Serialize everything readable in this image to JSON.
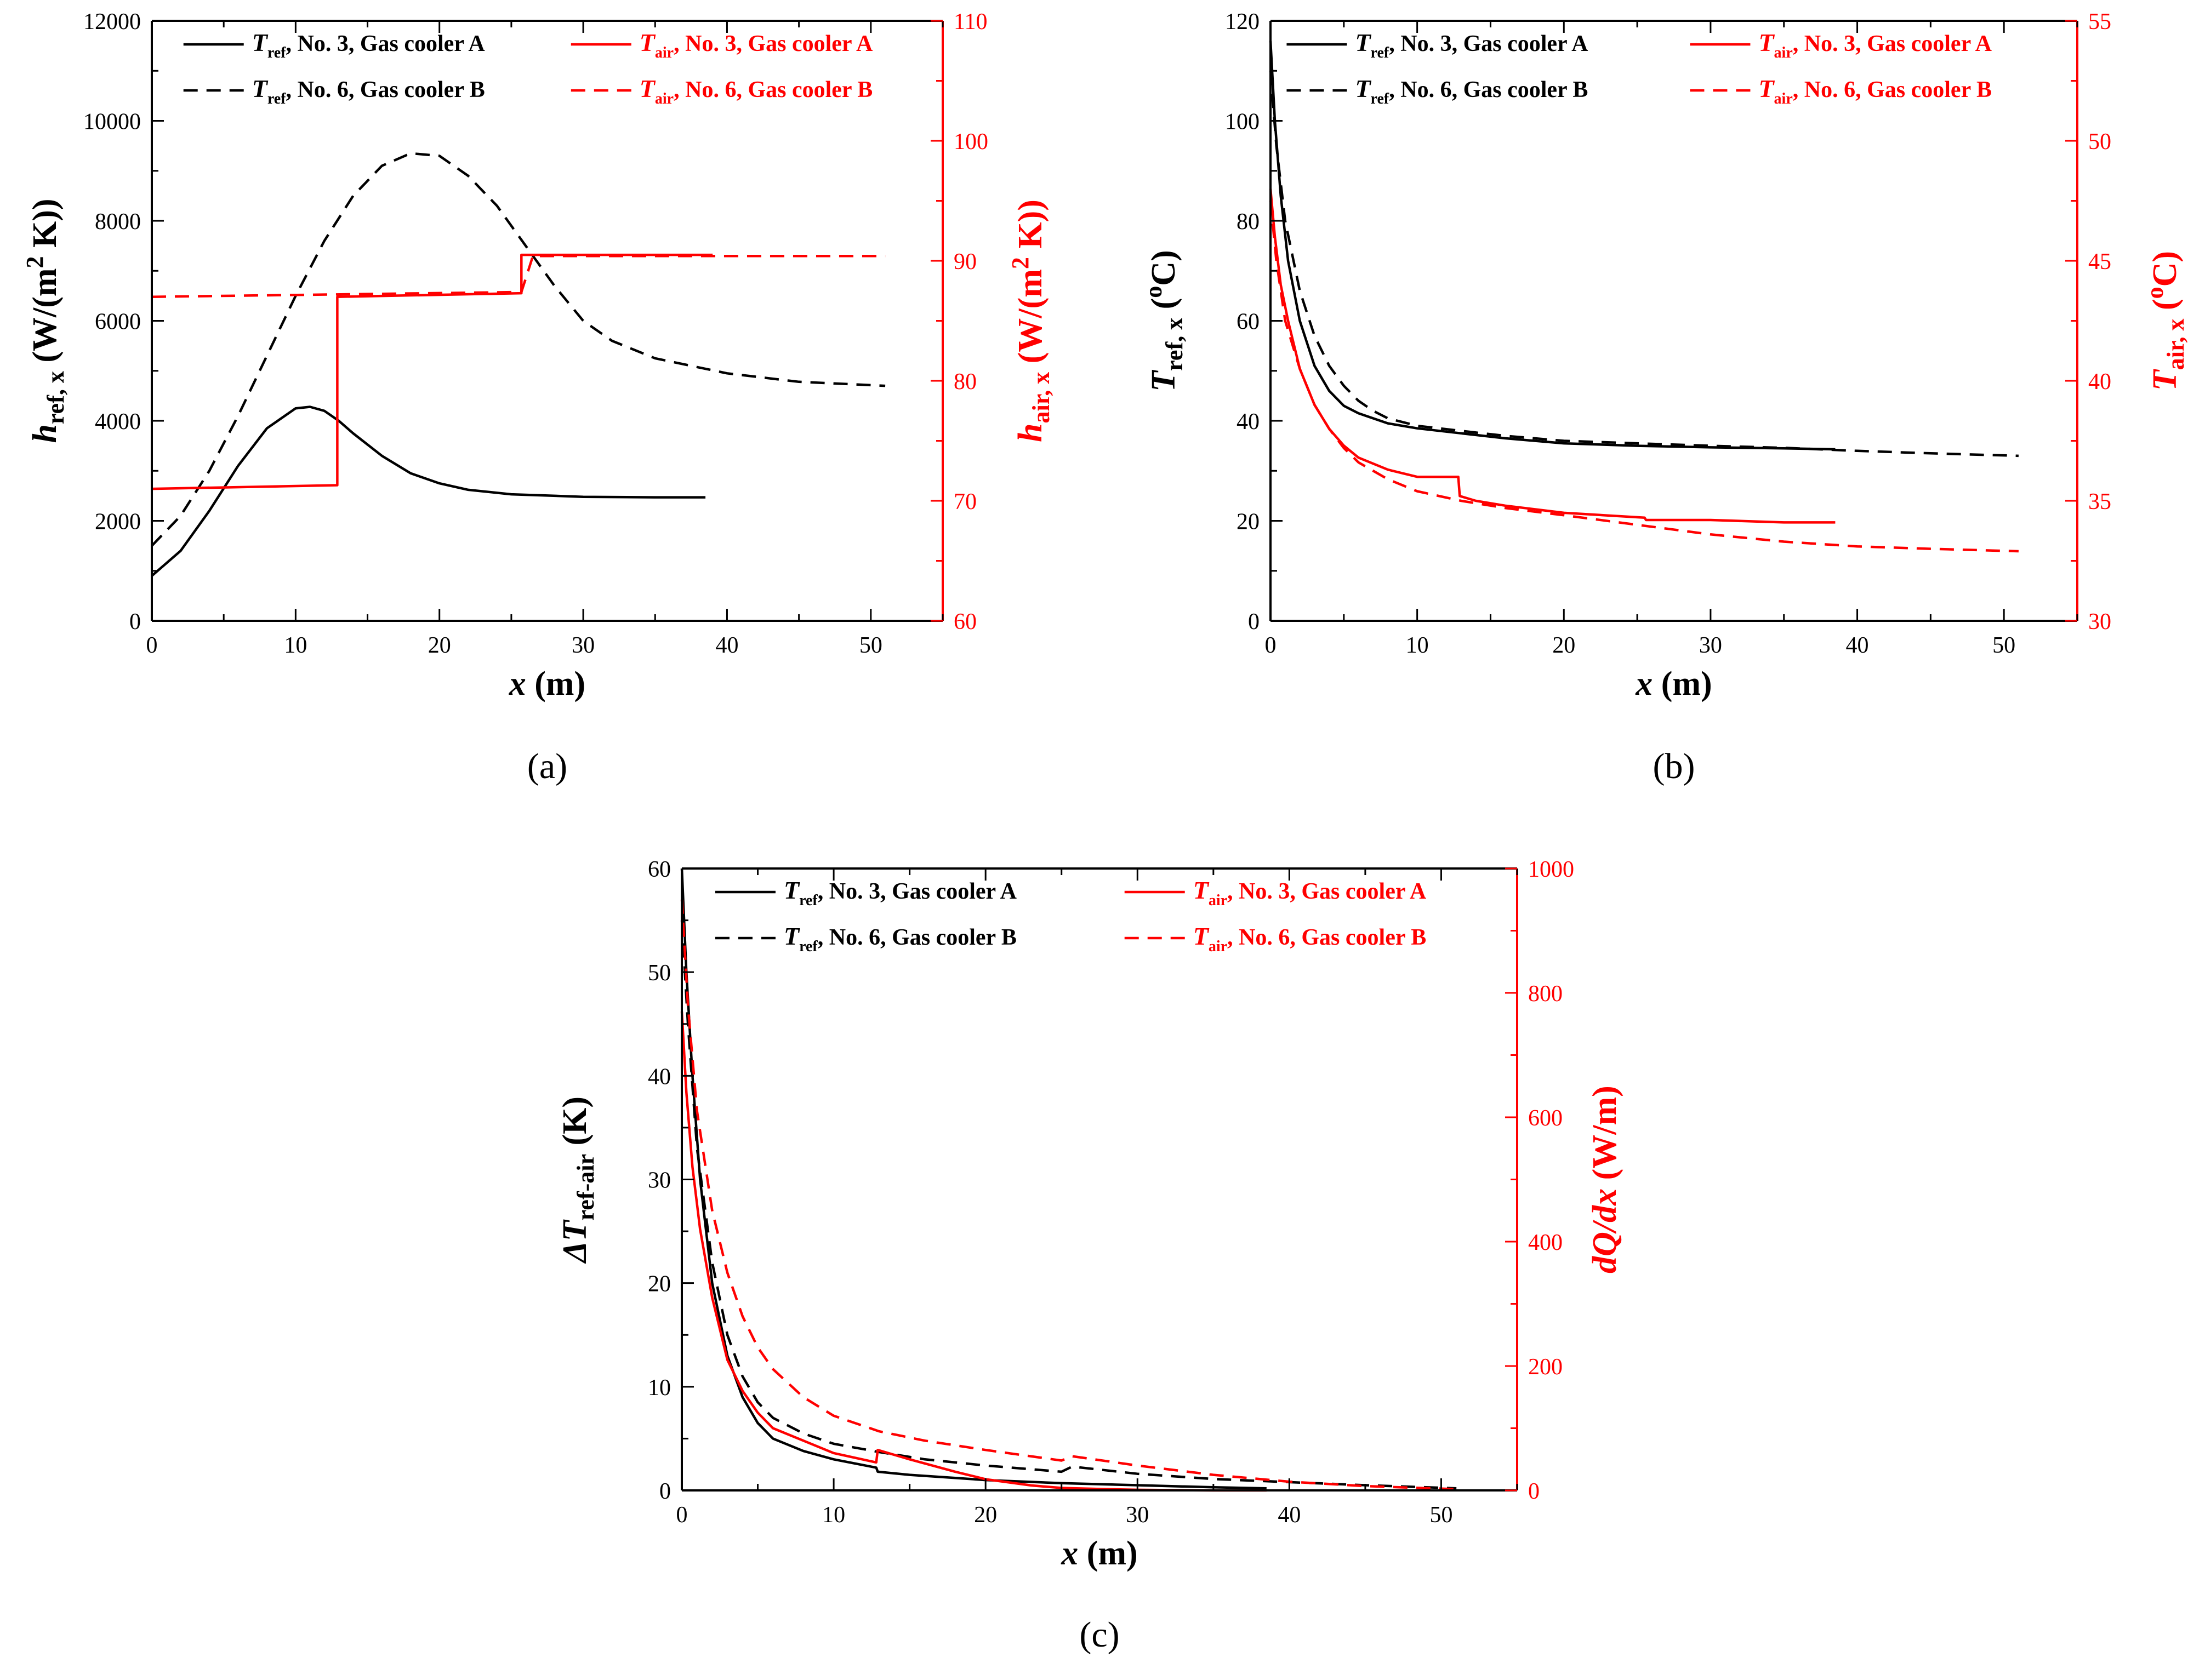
{
  "chart_data": [
    {
      "panel_label": "(a)",
      "type": "line",
      "xlabel": "x",
      "xlabel_unit": "(m)",
      "xlim": [
        0,
        55
      ],
      "xticks": [
        0,
        10,
        20,
        30,
        40,
        50
      ],
      "left_axis": {
        "label_main": "h",
        "label_sub": "ref, x",
        "label_unit": "(W/(m",
        "label_sup": "2",
        "label_tail": " K))",
        "color": "#000000",
        "ylim": [
          0,
          12000
        ],
        "ticks": [
          0,
          2000,
          4000,
          6000,
          8000,
          10000,
          12000
        ]
      },
      "right_axis": {
        "label_main": "h",
        "label_sub": "air, x",
        "label_unit": "(W/(m",
        "label_sup": "2",
        "label_tail": " K))",
        "color": "#ff0000",
        "ylim": [
          60,
          110
        ],
        "ticks": [
          60,
          70,
          80,
          90,
          100,
          110
        ]
      },
      "legend": {
        "placement": "top",
        "entries": [
          {
            "main": "T",
            "sub": "ref",
            "text": ", No. 3, Gas cooler A",
            "color": "#000000",
            "dash": "solid"
          },
          {
            "main": "T",
            "sub": "air",
            "text": ", No. 3, Gas cooler A",
            "color": "#ff0000",
            "dash": "solid"
          },
          {
            "main": "T",
            "sub": "ref",
            "text": ", No. 6, Gas cooler B",
            "color": "#000000",
            "dash": "dashed"
          },
          {
            "main": "T",
            "sub": "air",
            "text": ", No. 6, Gas cooler B",
            "color": "#ff0000",
            "dash": "dashed"
          }
        ]
      },
      "series": [
        {
          "name": "h_ref, No. 3, Gas cooler A",
          "axis": "left",
          "color": "#000000",
          "dash": "solid",
          "x": [
            0,
            2,
            4,
            6,
            8,
            10,
            11,
            12,
            13,
            14,
            16,
            18,
            20,
            22,
            25,
            30,
            35,
            38.5
          ],
          "y": [
            900,
            1400,
            2200,
            3100,
            3850,
            4250,
            4280,
            4200,
            4000,
            3750,
            3300,
            2950,
            2750,
            2620,
            2530,
            2480,
            2470,
            2470
          ]
        },
        {
          "name": "h_ref, No. 6, Gas cooler B",
          "axis": "left",
          "color": "#000000",
          "dash": "dashed",
          "x": [
            0,
            2,
            4,
            6,
            8,
            10,
            12,
            14,
            16,
            18,
            20,
            22,
            24,
            26,
            28,
            30,
            32,
            35,
            40,
            45,
            51
          ],
          "y": [
            1500,
            2100,
            3000,
            4100,
            5300,
            6500,
            7600,
            8500,
            9100,
            9350,
            9300,
            8900,
            8300,
            7500,
            6700,
            6000,
            5600,
            5250,
            4950,
            4780,
            4700
          ]
        },
        {
          "name": "h_air, No. 3, Gas cooler A",
          "axis": "right",
          "color": "#ff0000",
          "dash": "solid",
          "x": [
            0,
            12.9,
            12.9,
            25.7,
            25.7,
            39
          ],
          "y": [
            71,
            71.3,
            87,
            87.3,
            90.5,
            90.5
          ]
        },
        {
          "name": "h_air, No. 6, Gas cooler B",
          "axis": "right",
          "color": "#ff0000",
          "dash": "dashed",
          "x": [
            0,
            25.7,
            26.5,
            51
          ],
          "y": [
            87,
            87.4,
            90.4,
            90.4
          ]
        }
      ]
    },
    {
      "panel_label": "(b)",
      "type": "line",
      "xlabel": "x",
      "xlabel_unit": "(m)",
      "xlim": [
        0,
        55
      ],
      "xticks": [
        0,
        10,
        20,
        30,
        40,
        50
      ],
      "left_axis": {
        "label_main": "T",
        "label_sub": "ref, x",
        "label_unit": "(",
        "label_sup": "o",
        "label_tail": "C)",
        "color": "#000000",
        "ylim": [
          0,
          120
        ],
        "ticks": [
          0,
          20,
          40,
          60,
          80,
          100,
          120
        ]
      },
      "right_axis": {
        "label_main": "T",
        "label_sub": "air, x",
        "label_unit": "(",
        "label_sup": "o",
        "label_tail": "C)",
        "color": "#ff0000",
        "ylim": [
          30,
          55
        ],
        "ticks": [
          30,
          35,
          40,
          45,
          50,
          55
        ]
      },
      "legend": {
        "placement": "top",
        "entries": [
          {
            "main": "T",
            "sub": "ref",
            "text": ", No. 3, Gas cooler A",
            "color": "#000000",
            "dash": "solid"
          },
          {
            "main": "T",
            "sub": "air",
            "text": ", No. 3, Gas cooler A",
            "color": "#ff0000",
            "dash": "solid"
          },
          {
            "main": "T",
            "sub": "ref",
            "text": ", No. 6, Gas cooler B",
            "color": "#000000",
            "dash": "dashed"
          },
          {
            "main": "T",
            "sub": "air",
            "text": ", No. 6, Gas cooler B",
            "color": "#ff0000",
            "dash": "dashed"
          }
        ]
      },
      "series": [
        {
          "name": "T_ref, No. 3, Gas cooler A",
          "axis": "left",
          "color": "#000000",
          "dash": "solid",
          "x": [
            0,
            0.3,
            0.7,
            1.2,
            2,
            3,
            4,
            5,
            6,
            8,
            10,
            13,
            16,
            20,
            25,
            30,
            35,
            38.5
          ],
          "y": [
            116,
            100,
            85,
            72,
            60,
            51,
            46,
            43,
            41.5,
            39.5,
            38.5,
            37.5,
            36.5,
            35.5,
            35,
            34.7,
            34.5,
            34.3
          ]
        },
        {
          "name": "T_ref, No. 6, Gas cooler B",
          "axis": "left",
          "color": "#000000",
          "dash": "dashed",
          "x": [
            0,
            0.4,
            1,
            2,
            3,
            4,
            5,
            6,
            7,
            8,
            10,
            13,
            16,
            20,
            25,
            30,
            35,
            40,
            45,
            51
          ],
          "y": [
            110,
            95,
            80,
            66,
            57,
            51,
            47,
            44,
            42,
            40.5,
            39,
            38,
            37,
            36,
            35.5,
            35,
            34.6,
            34,
            33.5,
            33
          ]
        },
        {
          "name": "T_air, No. 3, Gas cooler A",
          "axis": "right",
          "color": "#ff0000",
          "dash": "solid",
          "x": [
            0,
            0.3,
            0.7,
            1.2,
            2,
            3,
            4,
            5,
            6,
            8,
            10,
            12.8,
            12.9,
            14,
            16,
            20,
            25.5,
            25.6,
            30,
            35,
            38.5
          ],
          "y": [
            48,
            46,
            44,
            42.5,
            40.5,
            39,
            38,
            37.3,
            36.8,
            36.3,
            36,
            36,
            35.2,
            35,
            34.8,
            34.5,
            34.3,
            34.2,
            34.2,
            34.1,
            34.1
          ]
        },
        {
          "name": "T_air, No. 6, Gas cooler B",
          "axis": "right",
          "color": "#ff0000",
          "dash": "dashed",
          "x": [
            0,
            0.4,
            1,
            2,
            3,
            4,
            5,
            6,
            8,
            10,
            13,
            16,
            20,
            25,
            30,
            35,
            40,
            45,
            51
          ],
          "y": [
            47.5,
            45,
            42.5,
            40.5,
            39,
            38,
            37.2,
            36.6,
            35.9,
            35.4,
            35,
            34.7,
            34.4,
            34,
            33.6,
            33.3,
            33.1,
            33,
            32.9
          ]
        }
      ]
    },
    {
      "panel_label": "(c)",
      "type": "line",
      "xlabel": "x",
      "xlabel_unit": "(m)",
      "xlim": [
        0,
        55
      ],
      "xticks": [
        0,
        10,
        20,
        30,
        40,
        50
      ],
      "left_axis": {
        "label_main": "ΔT",
        "label_sub": "ref-air",
        "label_unit": "(K)",
        "label_sup": "",
        "label_tail": "",
        "color": "#000000",
        "ylim": [
          0,
          60
        ],
        "ticks": [
          0,
          10,
          20,
          30,
          40,
          50,
          60
        ]
      },
      "right_axis": {
        "label_main": "dQ/dx",
        "label_sub": "",
        "label_unit": "(W/m)",
        "label_sup": "",
        "label_tail": "",
        "color": "#ff0000",
        "ylim": [
          0,
          1000
        ],
        "ticks": [
          0,
          200,
          400,
          600,
          800,
          1000
        ]
      },
      "legend": {
        "placement": "top",
        "entries": [
          {
            "main": "T",
            "sub": "ref",
            "text": ", No. 3, Gas cooler A",
            "color": "#000000",
            "dash": "solid"
          },
          {
            "main": "T",
            "sub": "air",
            "text": ", No. 3, Gas cooler A",
            "color": "#ff0000",
            "dash": "solid"
          },
          {
            "main": "T",
            "sub": "ref",
            "text": ", No. 6, Gas cooler B",
            "color": "#000000",
            "dash": "dashed"
          },
          {
            "main": "T",
            "sub": "air",
            "text": ", No. 6, Gas cooler B",
            "color": "#ff0000",
            "dash": "dashed"
          }
        ]
      },
      "series": [
        {
          "name": "ΔT_ref-air, No. 3, Gas cooler A",
          "axis": "left",
          "color": "#000000",
          "dash": "solid",
          "x": [
            0,
            0.3,
            0.7,
            1.2,
            2,
            3,
            4,
            5,
            6,
            8,
            10,
            12.8,
            12.9,
            15,
            18,
            20,
            25,
            30,
            35,
            38.5
          ],
          "y": [
            60,
            50,
            40,
            30,
            20,
            13,
            9,
            6.5,
            5,
            3.8,
            3,
            2.2,
            1.8,
            1.5,
            1.2,
            1,
            0.7,
            0.5,
            0.3,
            0.2
          ]
        },
        {
          "name": "ΔT_ref-air, No. 6, Gas cooler B",
          "axis": "left",
          "color": "#000000",
          "dash": "dashed",
          "x": [
            0,
            0.4,
            1,
            2,
            3,
            4,
            5,
            6,
            8,
            10,
            13,
            16,
            20,
            25,
            25.7,
            30,
            35,
            40,
            45,
            51
          ],
          "y": [
            55,
            45,
            33,
            22,
            15,
            11,
            8.5,
            7,
            5.5,
            4.5,
            3.7,
            3,
            2.4,
            1.8,
            2.3,
            1.6,
            1.1,
            0.8,
            0.5,
            0.2
          ]
        },
        {
          "name": "dQ/dx, No. 3, Gas cooler A",
          "axis": "right",
          "color": "#ff0000",
          "dash": "solid",
          "x": [
            0,
            0.3,
            0.7,
            1.2,
            2,
            3,
            4,
            5,
            6,
            8,
            10,
            12.8,
            12.9,
            15,
            18,
            20,
            23,
            25,
            28,
            30,
            35,
            38.5
          ],
          "y": [
            770,
            640,
            520,
            420,
            310,
            210,
            160,
            125,
            100,
            80,
            60,
            45,
            65,
            50,
            30,
            18,
            8,
            4,
            2,
            1,
            0,
            0
          ]
        },
        {
          "name": "dQ/dx, No. 6, Gas cooler B",
          "axis": "right",
          "color": "#ff0000",
          "dash": "dashed",
          "x": [
            0,
            0.4,
            1,
            2,
            3,
            4,
            5,
            6,
            8,
            10,
            13,
            16,
            20,
            25,
            25.7,
            30,
            35,
            40,
            45,
            51
          ],
          "y": [
            950,
            780,
            610,
            450,
            350,
            280,
            230,
            195,
            150,
            120,
            95,
            80,
            65,
            48,
            55,
            40,
            25,
            14,
            7,
            2
          ]
        }
      ]
    }
  ]
}
